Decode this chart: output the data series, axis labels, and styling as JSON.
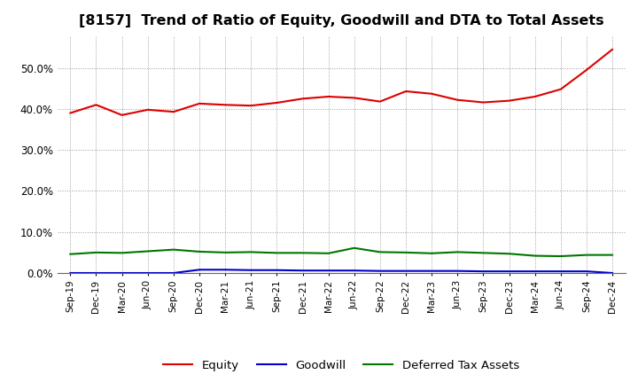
{
  "title": "[8157]  Trend of Ratio of Equity, Goodwill and DTA to Total Assets",
  "x_labels": [
    "Sep-19",
    "Dec-19",
    "Mar-20",
    "Jun-20",
    "Sep-20",
    "Dec-20",
    "Mar-21",
    "Jun-21",
    "Sep-21",
    "Dec-21",
    "Mar-22",
    "Jun-22",
    "Sep-22",
    "Dec-22",
    "Mar-23",
    "Jun-23",
    "Sep-23",
    "Dec-23",
    "Mar-24",
    "Jun-24",
    "Sep-24",
    "Dec-24"
  ],
  "equity": [
    0.39,
    0.41,
    0.385,
    0.398,
    0.393,
    0.413,
    0.41,
    0.408,
    0.415,
    0.425,
    0.43,
    0.427,
    0.418,
    0.443,
    0.437,
    0.422,
    0.416,
    0.42,
    0.43,
    0.448,
    0.495,
    0.545
  ],
  "goodwill": [
    0.0,
    0.0,
    0.0,
    0.0,
    0.0,
    0.008,
    0.008,
    0.007,
    0.007,
    0.006,
    0.006,
    0.006,
    0.005,
    0.005,
    0.005,
    0.005,
    0.004,
    0.004,
    0.004,
    0.004,
    0.004,
    0.0
  ],
  "dta": [
    0.046,
    0.05,
    0.049,
    0.053,
    0.057,
    0.052,
    0.05,
    0.051,
    0.049,
    0.049,
    0.048,
    0.061,
    0.051,
    0.05,
    0.048,
    0.051,
    0.049,
    0.047,
    0.042,
    0.041,
    0.044,
    0.044
  ],
  "equity_color": "#dd0000",
  "goodwill_color": "#0000cc",
  "dta_color": "#007700",
  "background_color": "#ffffff",
  "grid_color": "#999999",
  "ylim": [
    0.0,
    0.58
  ],
  "yticks": [
    0.0,
    0.1,
    0.2,
    0.3,
    0.4,
    0.5
  ],
  "title_fontsize": 11.5,
  "legend_labels": [
    "Equity",
    "Goodwill",
    "Deferred Tax Assets"
  ]
}
